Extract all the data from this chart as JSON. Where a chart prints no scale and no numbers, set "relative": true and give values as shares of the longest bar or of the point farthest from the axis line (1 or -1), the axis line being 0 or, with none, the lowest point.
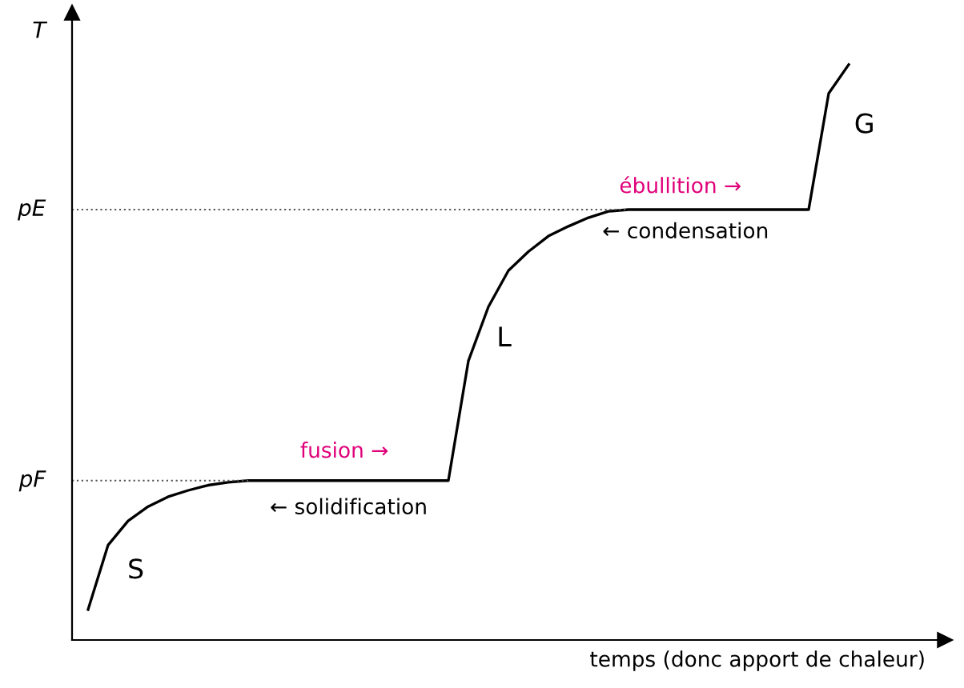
{
  "chart_data": {
    "type": "line",
    "relative": true,
    "xlabel": "temps (donc apport de chaleur)",
    "ylabel": "T",
    "color": "#000000",
    "marker": "none",
    "line_style": "solid",
    "categories": [
      null,
      null,
      null,
      null,
      null,
      null,
      null,
      null,
      null,
      null,
      null,
      null,
      null,
      null,
      null,
      null,
      null,
      null,
      null,
      null,
      null,
      null,
      null,
      null,
      null,
      null,
      null,
      null,
      null,
      null,
      null,
      null,
      null,
      null,
      null,
      null,
      null,
      null,
      null
    ],
    "values": [
      0.053,
      0.165,
      0.207,
      0.232,
      0.249,
      0.26,
      0.269,
      0.274,
      0.277,
      0.277,
      0.277,
      0.277,
      0.277,
      0.277,
      0.277,
      0.277,
      0.277,
      0.277,
      0.277,
      0.485,
      0.579,
      0.642,
      0.675,
      0.702,
      0.719,
      0.734,
      0.745,
      0.748,
      0.748,
      0.748,
      0.748,
      0.748,
      0.748,
      0.748,
      0.748,
      0.748,
      0.748,
      0.95,
      1
    ],
    "ref_lines": [
      {
        "axis": "y",
        "value": 0.277,
        "label": "pF",
        "line_style": "dotted",
        "color": "#555555"
      },
      {
        "axis": "y",
        "value": 0.748,
        "label": "pE",
        "line_style": "dotted",
        "color": "#555555"
      }
    ],
    "annotations": [
      "S",
      "L",
      "G",
      "fusion →",
      "← solidification",
      "ébullition →",
      "← condensation"
    ]
  }
}
